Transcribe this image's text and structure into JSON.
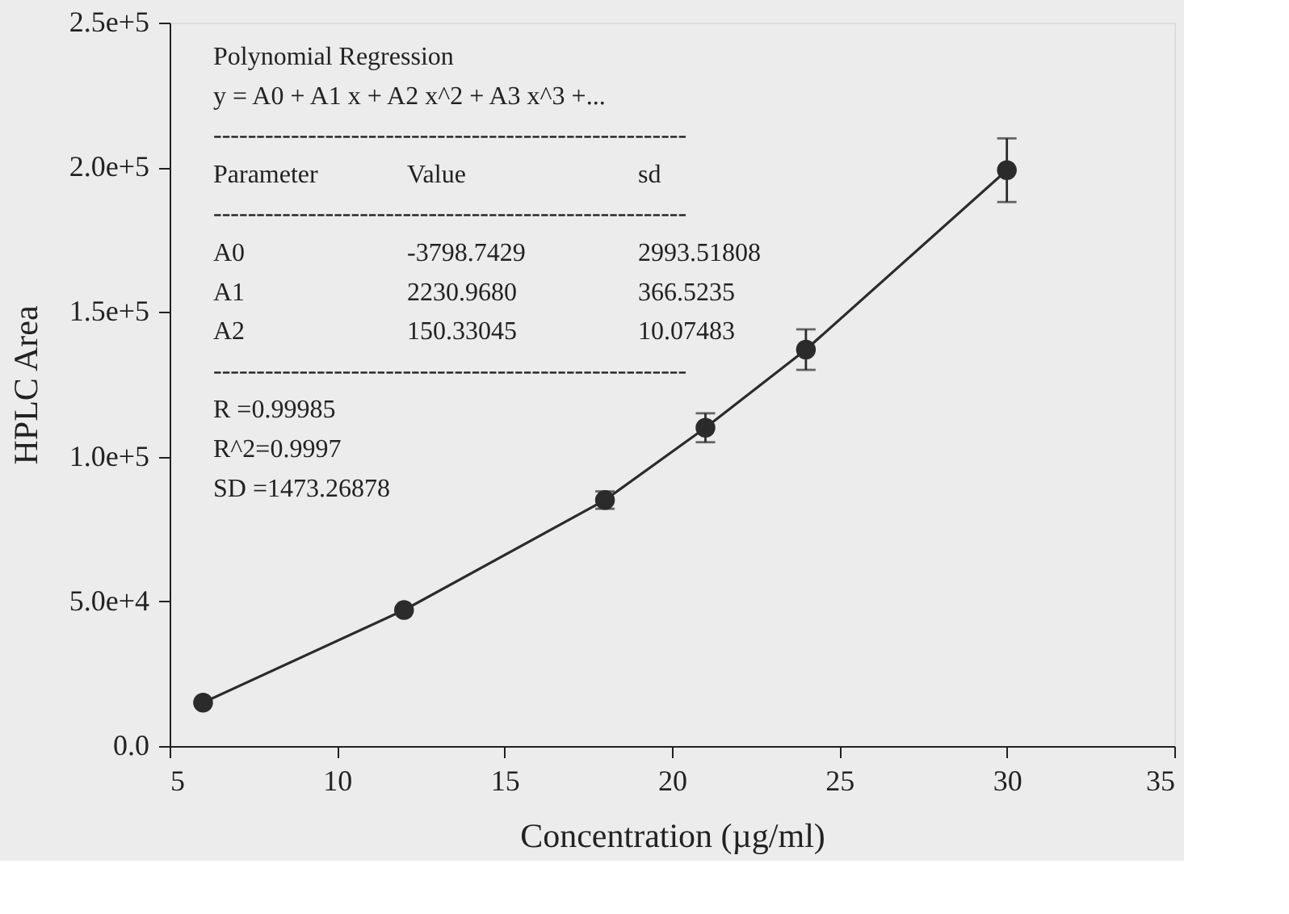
{
  "chart_data": {
    "type": "line",
    "xlabel": "Concentration (µg/ml)",
    "ylabel": "HPLC Area",
    "x": [
      6,
      12,
      18,
      21,
      24,
      30
    ],
    "series": [
      {
        "color": "#2b2b2b",
        "values": [
          15000,
          47000,
          85000,
          110000,
          137000,
          199000
        ],
        "errors": [
          null,
          null,
          3000,
          5000,
          7000,
          11000
        ]
      }
    ],
    "marker": "circle",
    "line_style": "solid",
    "grid": false,
    "xlim": [
      5,
      35
    ],
    "xticks": [
      5,
      10,
      15,
      20,
      25,
      30,
      35
    ],
    "ylim": [
      0,
      250000
    ],
    "yticks": [
      {
        "value": 0,
        "label": "0.0"
      },
      {
        "value": 50000,
        "label": "5.0e+4"
      },
      {
        "value": 100000,
        "label": "1.0e+5"
      },
      {
        "value": 150000,
        "label": "1.5e+5"
      },
      {
        "value": 200000,
        "label": "2.0e+5"
      },
      {
        "value": 250000,
        "label": "2.5e+5"
      }
    ],
    "annotations": [
      "Polynomial Regression",
      "y = A0 + A1 x + A2 x^2 + A3 x^3 +...",
      "-------------------------------------------------------",
      "Parameter",
      "Value",
      "sd",
      "-------------------------------------------------------",
      "A0",
      "-3798.7429",
      "2993.51808",
      "A1",
      "2230.9680",
      "366.5235",
      "A2",
      "150.33045",
      "10.07483",
      "-------------------------------------------------------",
      "R  =0.99985",
      "R^2=0.9997",
      "SD =1473.26878"
    ]
  }
}
